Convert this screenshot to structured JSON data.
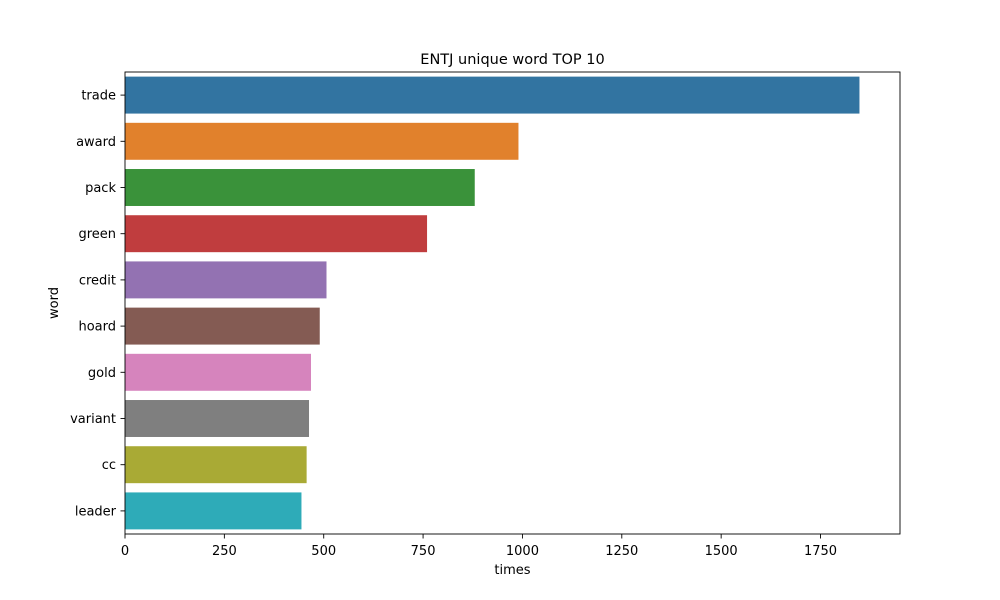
{
  "chart_data": {
    "type": "bar",
    "orientation": "horizontal",
    "title": "ENTJ unique word TOP 10",
    "xlabel": "times",
    "ylabel": "word",
    "categories": [
      "trade",
      "award",
      "pack",
      "green",
      "credit",
      "hoard",
      "gold",
      "variant",
      "cc",
      "leader"
    ],
    "values": [
      1848,
      990,
      880,
      760,
      507,
      490,
      468,
      463,
      457,
      444
    ],
    "xlim": [
      0,
      1950
    ],
    "xticks": [
      0,
      250,
      500,
      750,
      1000,
      1250,
      1500,
      1750
    ],
    "grid": false,
    "colors": [
      "#3274a1",
      "#e1812c",
      "#3a923a",
      "#c03d3e",
      "#9372b2",
      "#845b53",
      "#d684bd",
      "#7f7f7f",
      "#a9aa35",
      "#2eabb8"
    ]
  }
}
